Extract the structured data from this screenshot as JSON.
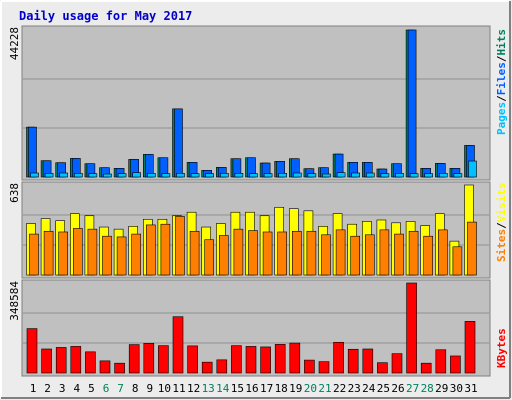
{
  "title": "Daily usage for May 2017",
  "colors": {
    "frame_bg": "#ececec",
    "plot_bg": "#c0c0c0",
    "title": "#0000cc",
    "pages": "#00c0ff",
    "files": "#0060ff",
    "hits": "#008060",
    "sites": "#ff8000",
    "visits": "#ffff00",
    "kbytes": "#ff0000",
    "weekend_label": "#00805c",
    "weekday_label": "#000000"
  },
  "chart_data": [
    {
      "type": "bar",
      "name": "hits-files-pages",
      "categories": [
        "1",
        "2",
        "3",
        "4",
        "5",
        "6",
        "7",
        "8",
        "9",
        "10",
        "11",
        "12",
        "13",
        "14",
        "15",
        "16",
        "17",
        "18",
        "19",
        "20",
        "21",
        "22",
        "23",
        "24",
        "25",
        "26",
        "27",
        "28",
        "29",
        "30",
        "31"
      ],
      "weekend_days": [
        "6",
        "7",
        "13",
        "14",
        "20",
        "21",
        "27",
        "28"
      ],
      "ymax_label": "44228",
      "legend": [
        "Pages",
        "/",
        "Files",
        "/",
        "Hits"
      ],
      "ylim": [
        0,
        44228
      ],
      "series": [
        {
          "name": "Hits",
          "values": [
            15000,
            4900,
            4300,
            5600,
            4000,
            2800,
            2600,
            5300,
            6800,
            5800,
            20500,
            4400,
            2000,
            2900,
            5500,
            5800,
            4200,
            4700,
            5500,
            2500,
            2800,
            6900,
            4400,
            4400,
            2400,
            4000,
            44228,
            2600,
            4100,
            2600,
            9500
          ]
        },
        {
          "name": "Files",
          "values": [
            15000,
            4900,
            4300,
            5600,
            4000,
            2800,
            2600,
            5300,
            6800,
            5800,
            20500,
            4400,
            2000,
            2900,
            5500,
            5800,
            4200,
            4700,
            5500,
            2500,
            2800,
            6900,
            4400,
            4400,
            2400,
            4000,
            44228,
            2600,
            4100,
            2600,
            9500
          ]
        },
        {
          "name": "Pages",
          "values": [
            1200,
            1100,
            1200,
            1100,
            1000,
            900,
            1000,
            1300,
            1100,
            1000,
            1100,
            1000,
            1000,
            1100,
            1100,
            1000,
            1000,
            1100,
            1200,
            1000,
            900,
            1300,
            1200,
            1200,
            1000,
            1100,
            1000,
            1000,
            1100,
            1000,
            4800
          ]
        }
      ]
    },
    {
      "type": "bar",
      "name": "visits-sites",
      "categories": [
        "1",
        "2",
        "3",
        "4",
        "5",
        "6",
        "7",
        "8",
        "9",
        "10",
        "11",
        "12",
        "13",
        "14",
        "15",
        "16",
        "17",
        "18",
        "19",
        "20",
        "21",
        "22",
        "23",
        "24",
        "25",
        "26",
        "27",
        "28",
        "29",
        "30",
        "31"
      ],
      "ymax_label": "638",
      "legend": [
        "Sites",
        "/",
        "Visits"
      ],
      "ylim": [
        0,
        638
      ],
      "series": [
        {
          "name": "Visits",
          "values": [
            365,
            400,
            385,
            435,
            420,
            340,
            325,
            345,
            395,
            395,
            420,
            445,
            340,
            365,
            445,
            445,
            420,
            480,
            470,
            455,
            345,
            435,
            360,
            380,
            390,
            370,
            380,
            350,
            435,
            240,
            638
          ]
        },
        {
          "name": "Sites",
          "values": [
            290,
            310,
            305,
            330,
            325,
            275,
            270,
            290,
            355,
            360,
            415,
            310,
            250,
            280,
            325,
            315,
            305,
            305,
            310,
            310,
            285,
            320,
            275,
            285,
            320,
            290,
            310,
            275,
            320,
            200,
            375
          ]
        }
      ]
    },
    {
      "type": "bar",
      "name": "kbytes",
      "categories": [
        "1",
        "2",
        "3",
        "4",
        "5",
        "6",
        "7",
        "8",
        "9",
        "10",
        "11",
        "12",
        "13",
        "14",
        "15",
        "16",
        "17",
        "18",
        "19",
        "20",
        "21",
        "22",
        "23",
        "24",
        "25",
        "26",
        "27",
        "28",
        "29",
        "30",
        "31"
      ],
      "ymax_label": "348584",
      "legend": [
        "KBytes"
      ],
      "ylim": [
        0,
        348584
      ],
      "series": [
        {
          "name": "KBytes",
          "values": [
            172000,
            93000,
            99000,
            103000,
            82000,
            47000,
            38000,
            110000,
            115000,
            106000,
            218000,
            105000,
            42000,
            51000,
            106000,
            103000,
            101000,
            111000,
            116000,
            50000,
            44000,
            119000,
            92000,
            93000,
            40000,
            75000,
            348584,
            38000,
            90000,
            66000,
            200000
          ]
        }
      ]
    }
  ]
}
